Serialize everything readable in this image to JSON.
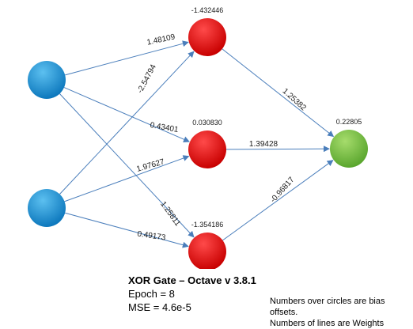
{
  "network": {
    "nodes": [
      {
        "id": "in1",
        "layer": "input",
        "color": "#1f8ed4"
      },
      {
        "id": "in2",
        "layer": "input",
        "color": "#1f8ed4"
      },
      {
        "id": "h1",
        "layer": "hidden",
        "bias": "-1.432446",
        "color": "#e30000"
      },
      {
        "id": "h2",
        "layer": "hidden",
        "bias": "0.030830",
        "color": "#e30000"
      },
      {
        "id": "h3",
        "layer": "hidden",
        "bias": "-1.354186",
        "color": "#e30000"
      },
      {
        "id": "out",
        "layer": "output",
        "bias": "0.22805",
        "color": "#7dc242"
      }
    ],
    "edges": [
      {
        "from": "in1",
        "to": "h1",
        "weight": "1.48109"
      },
      {
        "from": "in1",
        "to": "h2",
        "weight": "0.43401"
      },
      {
        "from": "in1",
        "to": "h3",
        "weight": "1.25811"
      },
      {
        "from": "in2",
        "to": "h1",
        "weight": "-2.54794"
      },
      {
        "from": "in2",
        "to": "h2",
        "weight": "1.97627"
      },
      {
        "from": "in2",
        "to": "h3",
        "weight": "0.49173"
      },
      {
        "from": "h1",
        "to": "out",
        "weight": "1.25382"
      },
      {
        "from": "h2",
        "to": "out",
        "weight": "1.39428"
      },
      {
        "from": "h3",
        "to": "out",
        "weight": "-0.96817"
      }
    ]
  },
  "caption": {
    "title": "XOR Gate – Octave v 3.8.1",
    "epoch": "Epoch = 8",
    "mse": "MSE = 4.6e-5"
  },
  "note": {
    "line1": "Numbers over circles are bias offsets.",
    "line2": "Numbers of lines are Weights"
  }
}
